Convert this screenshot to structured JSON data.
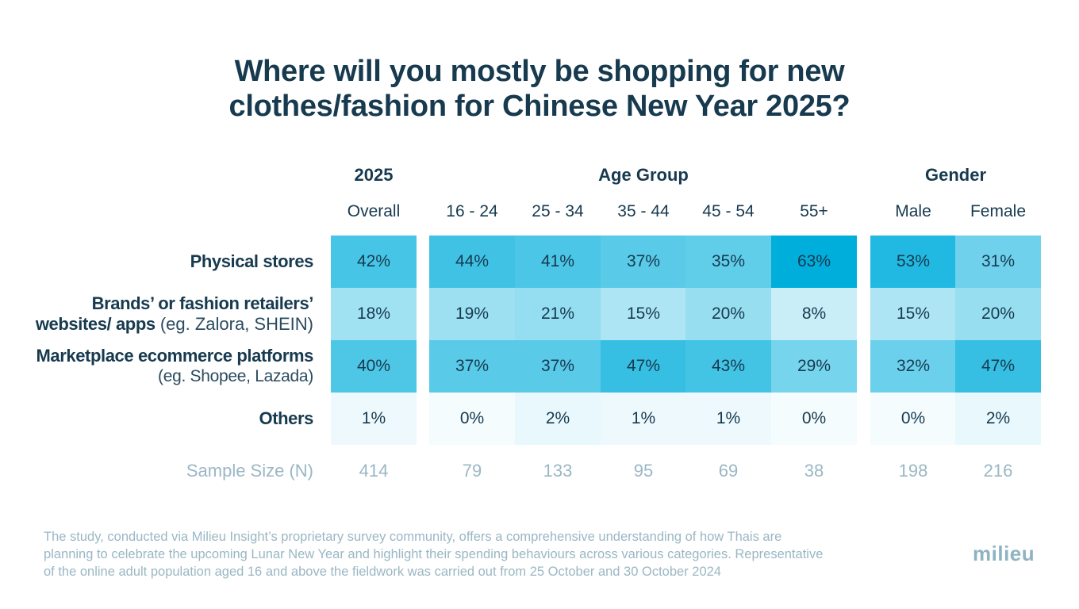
{
  "title_lines": [
    "Where will you mostly be shopping for new",
    "clothes/fashion for Chinese New Year 2025?"
  ],
  "colors": {
    "cell_base": "#00aedc",
    "title": "#173a4f",
    "muted": "#9ab7c4"
  },
  "chart_data": {
    "type": "table",
    "title": "Where will you mostly be shopping for new clothes/fashion for Chinese New Year 2025?",
    "groups": [
      {
        "label": "2025",
        "columns": [
          "Overall"
        ]
      },
      {
        "label": "Age Group",
        "columns": [
          "16 - 24",
          "25 - 34",
          "35 - 44",
          "45 - 54",
          "55+"
        ]
      },
      {
        "label": "Gender",
        "columns": [
          "Male",
          "Female"
        ]
      }
    ],
    "rows": [
      {
        "label": "Physical stores",
        "sublabel": "",
        "values": [
          42,
          44,
          41,
          37,
          35,
          63,
          53,
          31
        ]
      },
      {
        "label": "Brands’ or fashion retailers’",
        "label_line2": "websites/ apps",
        "sublabel": " (eg. Zalora, SHEIN)",
        "values": [
          18,
          19,
          21,
          15,
          20,
          8,
          15,
          20
        ]
      },
      {
        "label": "Marketplace ecommerce platforms",
        "sublabel": "(eg. Shopee, Lazada)",
        "values": [
          40,
          37,
          37,
          47,
          43,
          29,
          32,
          47
        ]
      },
      {
        "label": "Others",
        "sublabel": "",
        "values": [
          1,
          0,
          2,
          1,
          1,
          0,
          0,
          2
        ]
      }
    ],
    "value_suffix": "%",
    "sample": {
      "label": "Sample Size (N)",
      "values": [
        "414",
        "79",
        "133",
        "95",
        "69",
        "38",
        "198",
        "216"
      ]
    }
  },
  "footnote_lines": [
    "The study, conducted via Milieu Insight’s proprietary survey community, offers a comprehensive understanding of how Thais are",
    "planning to celebrate the upcoming Lunar New Year and highlight their spending behaviours across various categories. Representative",
    "of the online adult population aged 16 and above the fieldwork was carried out from 25 October and 30 October 2024"
  ],
  "logo": "milieu"
}
